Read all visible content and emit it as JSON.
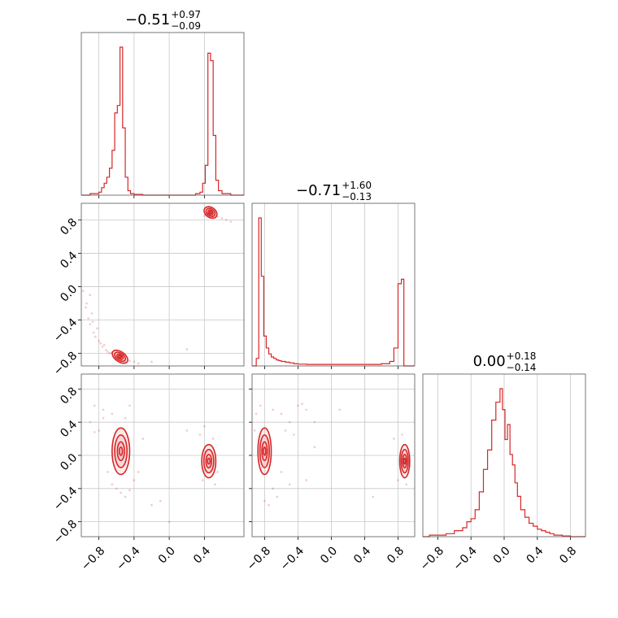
{
  "chart_data": {
    "type": "corner",
    "color": "#d62728",
    "fill_color": "#f4c2c4",
    "grid": true,
    "parameters": [
      {
        "title": {
          "median": "−0.51",
          "plus": "+0.97",
          "minus": "−0.09"
        },
        "range": [
          -1.0,
          0.85
        ],
        "ticks": [
          -0.8,
          -0.4,
          0.0,
          0.4
        ],
        "tick_labels": [
          "−0.8",
          "−0.4",
          "0.0",
          "0.4"
        ],
        "hist_bins": [
          -1.0,
          -0.95,
          -0.9,
          -0.85,
          -0.8,
          -0.77,
          -0.74,
          -0.71,
          -0.68,
          -0.65,
          -0.62,
          -0.59,
          -0.56,
          -0.53,
          -0.5,
          -0.47,
          -0.44,
          -0.4,
          -0.3,
          -0.2,
          -0.1,
          0.0,
          0.1,
          0.2,
          0.3,
          0.35,
          0.38,
          0.41,
          0.44,
          0.47,
          0.5,
          0.53,
          0.56,
          0.6,
          0.7,
          0.85
        ],
        "hist_values": [
          0.0,
          0.0,
          0.01,
          0.01,
          0.02,
          0.05,
          0.08,
          0.12,
          0.18,
          0.3,
          0.55,
          0.6,
          0.99,
          0.45,
          0.12,
          0.03,
          0.01,
          0.005,
          0.0,
          0.0,
          0.0,
          0.0,
          0.0,
          0.0,
          0.01,
          0.02,
          0.08,
          0.2,
          0.95,
          0.9,
          0.4,
          0.1,
          0.03,
          0.01,
          0.0
        ]
      },
      {
        "title": {
          "median": "−0.71",
          "plus": "+1.60",
          "minus": "−0.13"
        },
        "range": [
          -0.95,
          1.0
        ],
        "ticks": [
          -0.8,
          -0.4,
          0.0,
          0.4,
          0.8
        ],
        "tick_labels": [
          "−0.8",
          "−0.4",
          "0.0",
          "0.4",
          "0.8"
        ],
        "hist_bins": [
          -0.95,
          -0.9,
          -0.87,
          -0.84,
          -0.81,
          -0.78,
          -0.75,
          -0.72,
          -0.69,
          -0.66,
          -0.63,
          -0.6,
          -0.55,
          -0.5,
          -0.45,
          -0.4,
          -0.3,
          -0.2,
          -0.1,
          0.0,
          0.2,
          0.4,
          0.6,
          0.7,
          0.75,
          0.8,
          0.84,
          0.87,
          0.9,
          0.95,
          1.0
        ],
        "hist_values": [
          0.0,
          0.05,
          0.99,
          0.6,
          0.2,
          0.12,
          0.08,
          0.06,
          0.05,
          0.04,
          0.035,
          0.03,
          0.025,
          0.02,
          0.015,
          0.012,
          0.01,
          0.01,
          0.01,
          0.01,
          0.01,
          0.01,
          0.015,
          0.03,
          0.12,
          0.55,
          0.58,
          0.0,
          0.0,
          0.0
        ]
      },
      {
        "title": {
          "median": "0.00",
          "plus": "+0.18",
          "minus": "−0.14"
        },
        "range": [
          -0.98,
          0.98
        ],
        "ticks": [
          -0.8,
          -0.4,
          0.0,
          0.4,
          0.8
        ],
        "tick_labels": [
          "−0.8",
          "−0.4",
          "0.0",
          "0.4",
          "0.8"
        ],
        "hist_bins": [
          -0.98,
          -0.9,
          -0.8,
          -0.7,
          -0.6,
          -0.5,
          -0.45,
          -0.4,
          -0.35,
          -0.3,
          -0.25,
          -0.2,
          -0.15,
          -0.1,
          -0.05,
          -0.02,
          0.01,
          0.04,
          0.07,
          0.1,
          0.13,
          0.16,
          0.2,
          0.25,
          0.3,
          0.35,
          0.4,
          0.45,
          0.5,
          0.55,
          0.6,
          0.7,
          0.8,
          0.98
        ],
        "hist_values": [
          0.0,
          0.01,
          0.01,
          0.02,
          0.04,
          0.06,
          0.1,
          0.12,
          0.18,
          0.3,
          0.45,
          0.58,
          0.78,
          0.9,
          0.99,
          0.85,
          0.65,
          0.75,
          0.55,
          0.48,
          0.36,
          0.27,
          0.18,
          0.13,
          0.09,
          0.07,
          0.05,
          0.04,
          0.03,
          0.02,
          0.01,
          0.005,
          0.0
        ]
      }
    ],
    "panels_2d": [
      {
        "x_param": 0,
        "y_param": 1,
        "y_ticks": [
          -0.8,
          -0.4,
          0.0,
          0.4,
          0.8
        ],
        "y_tick_labels": [
          "−0.8",
          "−0.4",
          "0.0",
          "0.4",
          "0.8"
        ],
        "clusters": [
          {
            "cx": -0.56,
            "cy": -0.84,
            "sx": 0.05,
            "sy": 0.03
          },
          {
            "cx": 0.47,
            "cy": 0.89,
            "sx": 0.04,
            "sy": 0.03
          }
        ],
        "scatter": [
          [
            -0.98,
            -0.05
          ],
          [
            -0.95,
            -0.25
          ],
          [
            -0.92,
            -0.38
          ],
          [
            -0.9,
            -0.45
          ],
          [
            -0.88,
            -0.32
          ],
          [
            -0.86,
            -0.55
          ],
          [
            -0.84,
            -0.6
          ],
          [
            -0.82,
            -0.5
          ],
          [
            -0.8,
            -0.65
          ],
          [
            -0.78,
            -0.68
          ],
          [
            -0.76,
            -0.72
          ],
          [
            -0.74,
            -0.7
          ],
          [
            -0.72,
            -0.76
          ],
          [
            -0.7,
            -0.78
          ],
          [
            -0.68,
            -0.8
          ],
          [
            -0.66,
            -0.79
          ],
          [
            -0.64,
            -0.82
          ],
          [
            -0.62,
            -0.85
          ],
          [
            -0.6,
            -0.86
          ],
          [
            -0.55,
            -0.88
          ],
          [
            -0.5,
            -0.9
          ],
          [
            -0.45,
            -0.89
          ],
          [
            -0.4,
            -0.9
          ],
          [
            -0.35,
            -0.92
          ],
          [
            -0.2,
            -0.9
          ],
          [
            0.2,
            -0.75
          ],
          [
            0.4,
            0.85
          ],
          [
            0.45,
            0.92
          ],
          [
            0.5,
            0.87
          ],
          [
            0.55,
            0.84
          ],
          [
            0.6,
            0.82
          ],
          [
            0.65,
            0.8
          ],
          [
            0.7,
            0.78
          ],
          [
            -0.94,
            -0.2
          ],
          [
            -0.9,
            -0.1
          ],
          [
            -0.87,
            -0.42
          ]
        ]
      },
      {
        "x_param": 0,
        "y_param": 2,
        "y_ticks": [
          -0.8,
          -0.4,
          0.0,
          0.4,
          0.8
        ],
        "y_tick_labels": [
          "−0.8",
          "−0.4",
          "0.0",
          "0.4",
          "0.8"
        ],
        "clusters": [
          {
            "cx": -0.55,
            "cy": 0.05,
            "sx": 0.05,
            "sy": 0.14
          },
          {
            "cx": 0.45,
            "cy": -0.07,
            "sx": 0.04,
            "sy": 0.1
          }
        ],
        "scatter": [
          [
            -0.85,
            0.6
          ],
          [
            -0.75,
            0.55
          ],
          [
            -0.65,
            0.5
          ],
          [
            -0.5,
            0.45
          ],
          [
            -0.45,
            0.6
          ],
          [
            -0.8,
            0.3
          ],
          [
            -0.85,
            0.28
          ],
          [
            -0.7,
            -0.2
          ],
          [
            -0.65,
            -0.35
          ],
          [
            -0.6,
            -0.4
          ],
          [
            -0.55,
            -0.45
          ],
          [
            -0.5,
            -0.5
          ],
          [
            -0.45,
            -0.42
          ],
          [
            -0.4,
            -0.3
          ],
          [
            -0.35,
            -0.2
          ],
          [
            -0.3,
            0.2
          ],
          [
            -0.2,
            -0.6
          ],
          [
            -0.1,
            -0.55
          ],
          [
            0.0,
            -0.8
          ],
          [
            0.2,
            0.3
          ],
          [
            0.35,
            0.25
          ],
          [
            0.38,
            -0.3
          ],
          [
            0.5,
            0.2
          ],
          [
            0.52,
            -0.35
          ],
          [
            0.55,
            -0.2
          ],
          [
            0.4,
            0.35
          ],
          [
            -0.9,
            0.4
          ],
          [
            -0.75,
            0.45
          ]
        ]
      },
      {
        "x_param": 1,
        "y_param": 2,
        "y_ticks": [
          -0.8,
          -0.4,
          0.0,
          0.4,
          0.8
        ],
        "y_tick_labels": [],
        "clusters": [
          {
            "cx": -0.8,
            "cy": 0.05,
            "sx": 0.04,
            "sy": 0.14
          },
          {
            "cx": 0.88,
            "cy": -0.07,
            "sx": 0.03,
            "sy": 0.1
          }
        ],
        "scatter": [
          [
            -0.9,
            0.5
          ],
          [
            -0.85,
            0.6
          ],
          [
            -0.7,
            0.55
          ],
          [
            -0.6,
            0.5
          ],
          [
            -0.5,
            0.4
          ],
          [
            -0.4,
            0.6
          ],
          [
            -0.3,
            0.55
          ],
          [
            -0.55,
            0.3
          ],
          [
            -0.45,
            0.25
          ],
          [
            -0.6,
            -0.2
          ],
          [
            -0.7,
            -0.4
          ],
          [
            -0.65,
            -0.5
          ],
          [
            -0.75,
            -0.6
          ],
          [
            -0.8,
            -0.55
          ],
          [
            -0.5,
            -0.35
          ],
          [
            -0.3,
            -0.3
          ],
          [
            -0.2,
            0.1
          ],
          [
            0.1,
            0.55
          ],
          [
            0.5,
            -0.5
          ],
          [
            0.75,
            0.2
          ],
          [
            0.8,
            -0.3
          ],
          [
            0.85,
            0.25
          ],
          [
            0.9,
            -0.35
          ],
          [
            -0.2,
            0.4
          ],
          [
            -0.35,
            0.62
          ],
          [
            -0.92,
            0.3
          ]
        ]
      }
    ]
  }
}
